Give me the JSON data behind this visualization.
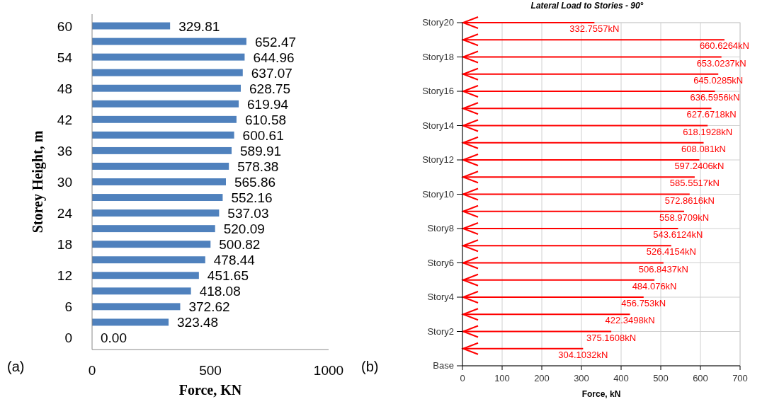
{
  "chart_data": [
    {
      "type": "bar",
      "orientation": "horizontal",
      "ylabel": "Storey Height, m",
      "xlabel": "Force, KN",
      "categories": [
        "60",
        null,
        "54",
        null,
        "48",
        null,
        "42",
        null,
        "36",
        null,
        "30",
        null,
        "24",
        null,
        "18",
        null,
        "12",
        null,
        "6",
        null,
        "0"
      ],
      "values": [
        329.81,
        652.47,
        644.96,
        637.07,
        628.75,
        619.94,
        610.58,
        600.61,
        589.91,
        578.38,
        565.86,
        552.16,
        537.03,
        520.09,
        500.82,
        478.44,
        451.65,
        418.08,
        372.62,
        323.48,
        0.0
      ],
      "value_labels": [
        "329.81",
        "652.47",
        "644.96",
        "637.07",
        "628.75",
        "619.94",
        "610.58",
        "600.61",
        "589.91",
        "578.38",
        "565.86",
        "552.16",
        "537.03",
        "520.09",
        "500.82",
        "478.44",
        "451.65",
        "418.08",
        "372.62",
        "323.48",
        "0.00"
      ],
      "color": "#4f81bd",
      "xlim": [
        0,
        1000
      ],
      "xticks": [
        0,
        500,
        1000
      ],
      "grid": false,
      "annotations": [
        "(a)"
      ]
    },
    {
      "type": "bar",
      "orientation": "horizontal",
      "title": "Lateral Load to Stories - 90°",
      "xlabel": "Force, kN",
      "categories": [
        "Story20",
        null,
        "Story18",
        null,
        "Story16",
        null,
        "Story14",
        null,
        "Story12",
        null,
        "Story10",
        null,
        "Story8",
        null,
        "Story6",
        null,
        "Story4",
        null,
        "Story2",
        null,
        "Base"
      ],
      "values": [
        332.7557,
        660.6264,
        653.0237,
        645.0285,
        636.5956,
        627.6718,
        618.1928,
        608.081,
        597.2406,
        585.5517,
        572.8616,
        558.9709,
        543.6124,
        526.4154,
        506.8437,
        484.076,
        456.753,
        422.3498,
        375.1608,
        304.1032,
        null
      ],
      "value_labels": [
        "332.7557kN",
        "660.6264kN",
        "653.0237kN",
        "645.0285kN",
        "636.5956kN",
        "627.6718kN",
        "618.1928kN",
        "608.081kN",
        "597.2406kN",
        "585.5517kN",
        "572.8616kN",
        "558.9709kN",
        "543.6124kN",
        "526.4154kN",
        "506.8437kN",
        "484.076kN",
        "456.753kN",
        "422.3498kN",
        "375.1608kN",
        "304.1032kN",
        null
      ],
      "color": "#ff0000",
      "xlim": [
        0,
        700
      ],
      "xticks": [
        0,
        100,
        200,
        300,
        400,
        500,
        600,
        700
      ],
      "grid": true,
      "annotations": [
        "(b)"
      ]
    }
  ]
}
